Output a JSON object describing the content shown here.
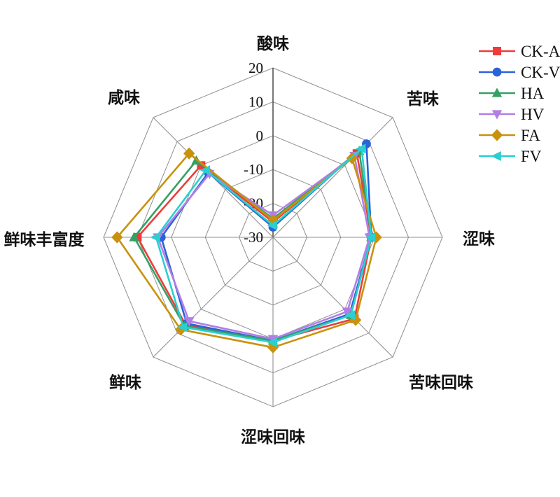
{
  "figure": {
    "background": "#ffffff",
    "grid_color": "#8f8f8f",
    "value_axis_color": "#555555",
    "text_color": "#111111"
  },
  "chart_data": {
    "type": "radar",
    "categories": [
      "酸味",
      "苦味",
      "涩味",
      "苦味回味",
      "涩味回味",
      "鲜味",
      "鲜味丰富度",
      "咸味"
    ],
    "r_ticks": [
      20,
      10,
      0,
      -10,
      -20,
      -30
    ],
    "r_range": [
      -30,
      20
    ],
    "grid": true,
    "legend_position": "top-right",
    "series": [
      {
        "name": "CK-A",
        "color": "#ee3b3b",
        "marker": "square",
        "values": [
          -25.5,
          5,
          -1,
          4,
          0.5,
          6.5,
          10,
          0
        ]
      },
      {
        "name": "CK-V",
        "color": "#2b62d9",
        "marker": "circle",
        "values": [
          -27,
          9,
          -1,
          2,
          0.5,
          6,
          3,
          -3
        ]
      },
      {
        "name": "HA",
        "color": "#34a164",
        "marker": "triangle-up",
        "values": [
          -24.5,
          6,
          -1,
          2.5,
          0.5,
          7,
          11,
          2
        ]
      },
      {
        "name": "HV",
        "color": "#b27ee6",
        "marker": "triangle-down",
        "values": [
          -23.5,
          4,
          -1.5,
          1,
          0,
          5,
          4,
          -3.5
        ]
      },
      {
        "name": "FA",
        "color": "#c9920c",
        "marker": "diamond",
        "values": [
          -25,
          3,
          0.5,
          4.5,
          2.5,
          8.5,
          16,
          5
        ]
      },
      {
        "name": "FV",
        "color": "#2bcfcf",
        "marker": "triangle-left",
        "values": [
          -26.5,
          7,
          -1,
          2.5,
          1,
          7.5,
          4.5,
          -2
        ]
      }
    ]
  }
}
